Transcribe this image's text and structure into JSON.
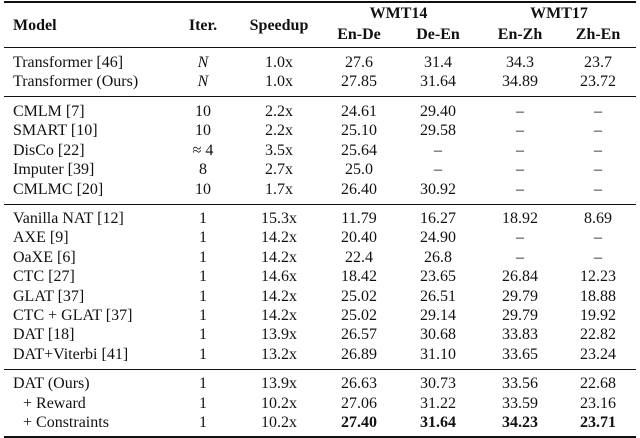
{
  "header": {
    "columns": [
      "Model",
      "Iter.",
      "Speedup"
    ],
    "groups": [
      {
        "title": "WMT14",
        "columns": [
          "En-De",
          "De-En"
        ]
      },
      {
        "title": "WMT17",
        "columns": [
          "En-Zh",
          "Zh-En"
        ]
      }
    ]
  },
  "table": {
    "groups": [
      [
        [
          "Transformer [46]",
          "N",
          "1.0x",
          "27.6",
          "31.4",
          "34.3",
          "23.7"
        ],
        [
          "Transformer (Ours)",
          "N",
          "1.0x",
          "27.85",
          "31.64",
          "34.89",
          "23.72"
        ]
      ],
      [
        [
          "CMLM [7]",
          "10",
          "2.2x",
          "24.61",
          "29.40",
          "–",
          "–"
        ],
        [
          "SMART [10]",
          "10",
          "2.2x",
          "25.10",
          "29.58",
          "–",
          "–"
        ],
        [
          "DisCo [22]",
          "≈ 4",
          "3.5x",
          "25.64",
          "–",
          "–",
          "–"
        ],
        [
          "Imputer [39]",
          "8",
          "2.7x",
          "25.0",
          "–",
          "–",
          "–"
        ],
        [
          "CMLMC [20]",
          "10",
          "1.7x",
          "26.40",
          "30.92",
          "–",
          "–"
        ]
      ],
      [
        [
          "Vanilla NAT [12]",
          "1",
          "15.3x",
          "11.79",
          "16.27",
          "18.92",
          "8.69"
        ],
        [
          "AXE [9]",
          "1",
          "14.2x",
          "20.40",
          "24.90",
          "–",
          "–"
        ],
        [
          "OaXE [6]",
          "1",
          "14.2x",
          "22.4",
          "26.8",
          "–",
          "–"
        ],
        [
          "CTC [27]",
          "1",
          "14.6x",
          "18.42",
          "23.65",
          "26.84",
          "12.23"
        ],
        [
          "GLAT [37]",
          "1",
          "14.2x",
          "25.02",
          "26.51",
          "29.79",
          "18.88"
        ],
        [
          "CTC + GLAT [37]",
          "1",
          "14.2x",
          "25.02",
          "29.14",
          "29.79",
          "19.92"
        ],
        [
          "DAT [18]",
          "1",
          "13.9x",
          "26.57",
          "30.68",
          "33.83",
          "22.82"
        ],
        [
          "DAT+Viterbi [41]",
          "1",
          "13.2x",
          "26.89",
          "31.10",
          "33.65",
          "23.24"
        ]
      ],
      [
        [
          "DAT (Ours)",
          "1",
          "13.9x",
          "26.63",
          "30.73",
          "33.56",
          "22.68"
        ],
        [
          "+ Reward",
          "1",
          "10.2x",
          "27.06",
          "31.22",
          "33.59",
          "23.16"
        ],
        [
          "+ Constraints",
          "1",
          "10.2x",
          "27.40",
          "31.64",
          "34.23",
          "23.71"
        ]
      ]
    ]
  }
}
